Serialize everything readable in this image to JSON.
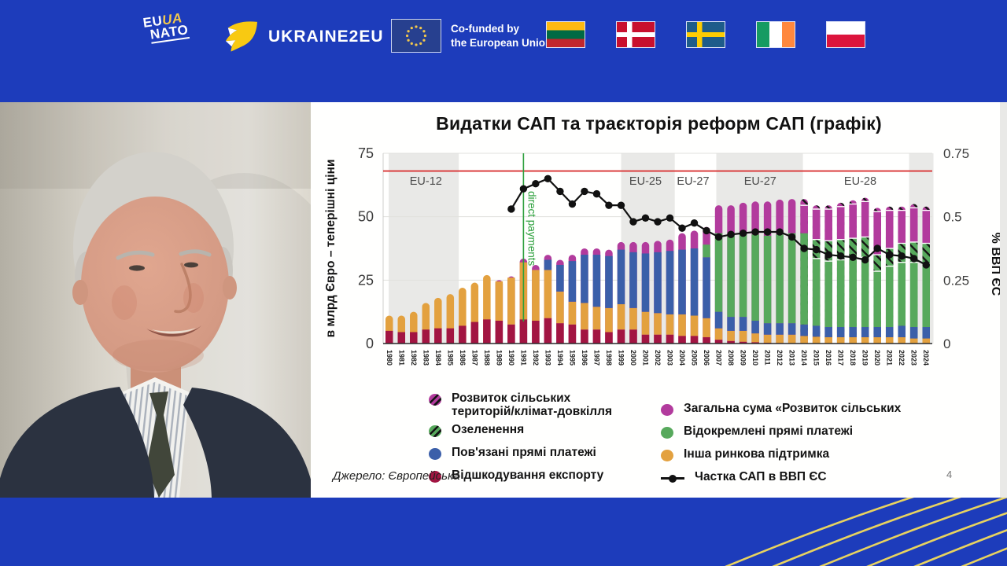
{
  "banner": {
    "bg_color": "#1d3cbb",
    "eu_nato": {
      "line1_white": "EU",
      "line1_yellow": "UA",
      "line2": "NATO"
    },
    "ukraine2eu": "UKRAINE2EU",
    "cofunded": {
      "line1": "Co-funded by",
      "line2": "the European Union"
    },
    "flags": [
      {
        "name": "lithuania",
        "type": "h",
        "colors": [
          "#FDB913",
          "#006A44",
          "#C1272D"
        ]
      },
      {
        "name": "denmark",
        "type": "nordic",
        "bg": "#C8102E",
        "cross": "#FFFFFF"
      },
      {
        "name": "sweden",
        "type": "nordic",
        "bg": "#1E5C8A",
        "cross": "#FECC02"
      },
      {
        "name": "ireland",
        "type": "v",
        "colors": [
          "#169B62",
          "#FFFFFF",
          "#FF883E"
        ]
      },
      {
        "name": "poland",
        "type": "h",
        "colors": [
          "#FFFFFF",
          "#DC143C"
        ]
      }
    ]
  },
  "slide": {
    "title": "Видатки САП та траєкторія реформ САП (графік)",
    "source": "Джерело: Європейська",
    "page_number": "4"
  },
  "chart_data": {
    "type": "bar",
    "title": "Видатки САП та траєкторія реформ САП (графік)",
    "x": [
      1980,
      1981,
      1982,
      1983,
      1984,
      1985,
      1986,
      1987,
      1988,
      1989,
      1990,
      1991,
      1992,
      1993,
      1994,
      1995,
      1996,
      1997,
      1998,
      1999,
      2000,
      2001,
      2002,
      2003,
      2004,
      2005,
      2006,
      2007,
      2008,
      2009,
      2010,
      2011,
      2012,
      2013,
      2014,
      2015,
      2016,
      2017,
      2018,
      2019,
      2020,
      2021,
      2022,
      2023,
      2024
    ],
    "left_axis": {
      "label": "в млрд Євро – теперішні ціни",
      "ticks": [
        "0",
        "25",
        "50",
        "75"
      ],
      "tick_values": [
        0,
        25,
        50,
        75
      ],
      "max": 75
    },
    "right_axis": {
      "label": "% ВВП ЄС",
      "ticks": [
        "0",
        "0.25",
        "0.5",
        "0.75"
      ],
      "tick_values": [
        0,
        0.25,
        0.5,
        0.75
      ],
      "max": 0.75
    },
    "grid_values": [
      25,
      50,
      75
    ],
    "series": [
      {
        "name": "Відшкодування експорту",
        "color": "#a21542",
        "hatched": false,
        "values": [
          5,
          4.5,
          4.5,
          5.5,
          6,
          6,
          7,
          8.5,
          9.5,
          9,
          7.5,
          9.5,
          9,
          10,
          8,
          7.5,
          5.5,
          5.5,
          4.5,
          5.5,
          5.5,
          3.5,
          3.5,
          3.5,
          3,
          3,
          2.5,
          1.5,
          1,
          0.7,
          0.5,
          0.3,
          0.2,
          0.1,
          0,
          0,
          0,
          0,
          0,
          0,
          0,
          0,
          0,
          0,
          0
        ]
      },
      {
        "name": "Інша ринкова підтримка",
        "color": "#e3a13f",
        "hatched": false,
        "values": [
          6,
          6.5,
          8,
          10.5,
          12,
          13.5,
          15,
          15.5,
          17.5,
          15.5,
          18.5,
          22.5,
          20,
          19,
          12.5,
          9,
          10.5,
          9,
          9.5,
          10,
          8.5,
          9,
          8.5,
          8,
          8.5,
          8,
          7.5,
          4.5,
          4,
          4.3,
          3.5,
          3.2,
          3.3,
          3.4,
          3,
          2.7,
          2.5,
          2.5,
          2.5,
          2.5,
          2.5,
          2.5,
          2.5,
          2,
          2
        ]
      },
      {
        "name": "Пов'язані прямі платежі",
        "color": "#3b5fa9",
        "hatched": false,
        "values": [
          0,
          0,
          0,
          0,
          0,
          0,
          0,
          0,
          0,
          0,
          0,
          0,
          0,
          4,
          10.5,
          16,
          19,
          20.5,
          20.5,
          21.5,
          22,
          23,
          24,
          25,
          25.5,
          26.5,
          24,
          6.5,
          5.5,
          5.5,
          5,
          4.5,
          4.5,
          4.5,
          4.5,
          4.3,
          4,
          4,
          4,
          4,
          4,
          4,
          4.5,
          4.5,
          4.5
        ]
      },
      {
        "name": "Відокремлені прямі платежі",
        "color": "#57a95c",
        "hatched": false,
        "values": [
          0,
          0,
          0,
          0,
          0,
          0,
          0,
          0,
          0,
          0,
          0,
          0,
          0,
          0,
          0,
          0,
          0,
          0,
          0,
          0,
          0,
          0,
          0,
          0,
          0,
          0,
          5,
          31,
          32.5,
          33,
          34,
          34.5,
          35,
          35.5,
          36,
          26.5,
          26,
          26.5,
          27,
          27.5,
          22,
          24,
          25,
          25.5,
          25
        ]
      },
      {
        "name": "Озеленення",
        "color": "#57a95c",
        "hatched": true,
        "values": [
          0,
          0,
          0,
          0,
          0,
          0,
          0,
          0,
          0,
          0,
          0,
          0,
          0,
          0,
          0,
          0,
          0,
          0,
          0,
          0,
          0,
          0,
          0,
          0,
          0,
          0,
          0,
          0,
          0,
          0,
          0,
          0,
          0,
          0,
          0,
          7.5,
          8,
          8,
          8,
          8,
          6.5,
          7,
          7.5,
          8,
          8
        ]
      },
      {
        "name": "Загальна сума «Розвиток сільських",
        "color": "#b23b9d",
        "hatched": false,
        "values": [
          0,
          0,
          0,
          0,
          0,
          0,
          0,
          0,
          0,
          0.5,
          0.5,
          1.5,
          2,
          2,
          2,
          2.5,
          2.5,
          2.5,
          2.5,
          3,
          4,
          4.5,
          4.5,
          4.5,
          6.5,
          7,
          7,
          11,
          11.5,
          12,
          13,
          13.5,
          13.75,
          13.5,
          11,
          12,
          12.5,
          13,
          13.5,
          14,
          17,
          15,
          13,
          13.5,
          13
        ]
      },
      {
        "name": "Розвиток сільських територій/клімат-довкілля",
        "color": "#b23b9d",
        "hatched": true,
        "values": [
          0,
          0,
          0,
          0,
          0,
          0,
          0,
          0,
          0,
          0,
          0,
          0,
          0,
          0,
          0,
          0,
          0,
          0,
          0,
          0,
          0,
          0,
          0,
          0,
          0,
          0,
          0,
          0,
          0,
          0,
          0,
          0,
          0,
          0,
          2.5,
          1.5,
          1.5,
          1.5,
          1.5,
          1.5,
          1.5,
          1.5,
          1.5,
          1.5,
          1.5
        ]
      }
    ],
    "line_series": {
      "name": "Частка САП в ВВП ЄС",
      "color": "#111111",
      "axis": "right",
      "values": [
        null,
        null,
        null,
        null,
        null,
        null,
        null,
        null,
        null,
        null,
        0.53,
        0.61,
        0.63,
        0.65,
        0.6,
        0.55,
        0.6,
        0.59,
        0.545,
        0.545,
        0.48,
        0.495,
        0.48,
        0.495,
        0.455,
        0.475,
        0.445,
        0.42,
        0.43,
        0.435,
        0.44,
        0.44,
        0.44,
        0.42,
        0.375,
        0.37,
        0.35,
        0.345,
        0.34,
        0.33,
        0.375,
        0.35,
        0.345,
        0.335,
        0.31
      ]
    },
    "reference_lines": {
      "horizontal": {
        "value": 68,
        "color": "#d93434"
      },
      "vertical": {
        "year": 1991,
        "color": "#2ca03c",
        "label": "direct payments"
      }
    },
    "bands": [
      {
        "from": 1979.95,
        "to": 1985.7
      },
      {
        "from": 1999.0,
        "to": 2003.4
      },
      {
        "from": 2006.8,
        "to": 2013.9
      },
      {
        "from": 2022.6,
        "to": 2024.6
      }
    ],
    "band_labels": [
      {
        "text": "EU-12",
        "at": 1983.0
      },
      {
        "text": "EU-25",
        "at": 2001.0
      },
      {
        "text": "EU-27",
        "at": 2004.9
      },
      {
        "text": "EU-27",
        "at": 2010.4
      },
      {
        "text": "EU-28",
        "at": 2018.6
      }
    ],
    "band_color": "#e9e9e7",
    "legend": {
      "left": [
        {
          "label": "Розвиток сільських\nтериторій/клімат-довкілля",
          "marker": "circle-hatched",
          "color": "#b23b9d"
        },
        {
          "label": "Озеленення",
          "marker": "circle-hatched",
          "color": "#57a95c"
        },
        {
          "label": "Пов'язані прямі платежі",
          "marker": "circle",
          "color": "#3b5fa9"
        },
        {
          "label": "Відшкодування експорту",
          "marker": "circle",
          "color": "#a21542"
        }
      ],
      "right": [
        {
          "label": "Загальна сума «Розвиток сільських",
          "marker": "circle",
          "color": "#b23b9d"
        },
        {
          "label": "Відокремлені прямі платежі",
          "marker": "circle",
          "color": "#57a95c"
        },
        {
          "label": "Інша ринкова підтримка",
          "marker": "circle",
          "color": "#e3a13f"
        },
        {
          "label": "Частка САП в ВВП ЄС",
          "marker": "line-dot",
          "color": "#111111"
        }
      ]
    }
  }
}
